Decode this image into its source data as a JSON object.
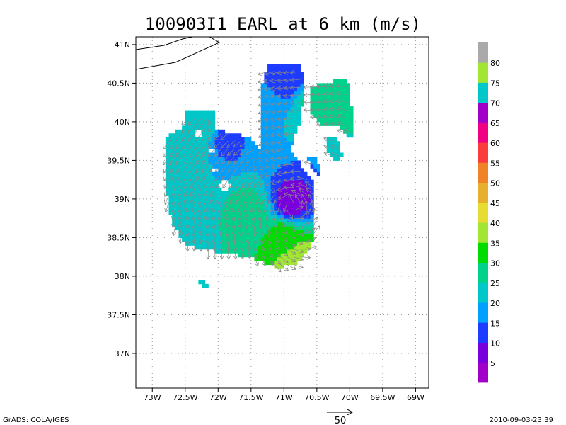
{
  "chart_data": {
    "type": "heatmap",
    "title": "100903I1 EARL at 6 km (m/s)",
    "xlabel": "",
    "ylabel": "",
    "xlim": [
      -73.25,
      -68.8
    ],
    "ylim": [
      36.55,
      41.1
    ],
    "x_ticks": [
      "73W",
      "72.5W",
      "72W",
      "71.5W",
      "71W",
      "70.5W",
      "70W",
      "69.5W",
      "69W"
    ],
    "y_ticks": [
      "41N",
      "40.5N",
      "40N",
      "39.5N",
      "39N",
      "38.5N",
      "38N",
      "37.5N",
      "37N"
    ],
    "grid": true,
    "colorbar": {
      "levels": [
        "5",
        "10",
        "15",
        "20",
        "25",
        "30",
        "35",
        "40",
        "45",
        "50",
        "55",
        "60",
        "65",
        "70",
        "75",
        "80"
      ],
      "colors": [
        "#a000c8",
        "#7800dc",
        "#1e3cff",
        "#00a0ff",
        "#00c8c8",
        "#00d28c",
        "#00dc00",
        "#a0e632",
        "#e6dc32",
        "#e6af2d",
        "#f08228",
        "#fa3c3c",
        "#f00082",
        "#a000c8",
        "#00c8c8",
        "#a0e632",
        "#aaaaaa"
      ]
    },
    "series": [
      {
        "values": [
          [
            -72.6,
            38.6,
            22
          ],
          [
            -72.4,
            39.5,
            21
          ],
          [
            -72.2,
            39.9,
            23
          ],
          [
            -71.9,
            39.8,
            13
          ],
          [
            -71.3,
            40.0,
            20
          ],
          [
            -70.9,
            40.6,
            12
          ],
          [
            -70.5,
            40.3,
            28
          ],
          [
            -71.5,
            38.8,
            27
          ],
          [
            -71.0,
            38.5,
            33
          ],
          [
            -70.9,
            38.95,
            8
          ],
          [
            -70.8,
            38.2,
            38
          ]
        ]
      }
    ],
    "vector_reference": "50"
  },
  "footer": {
    "left": "GrADS: COLA/IGES",
    "right": "2010-09-03-23:39"
  }
}
